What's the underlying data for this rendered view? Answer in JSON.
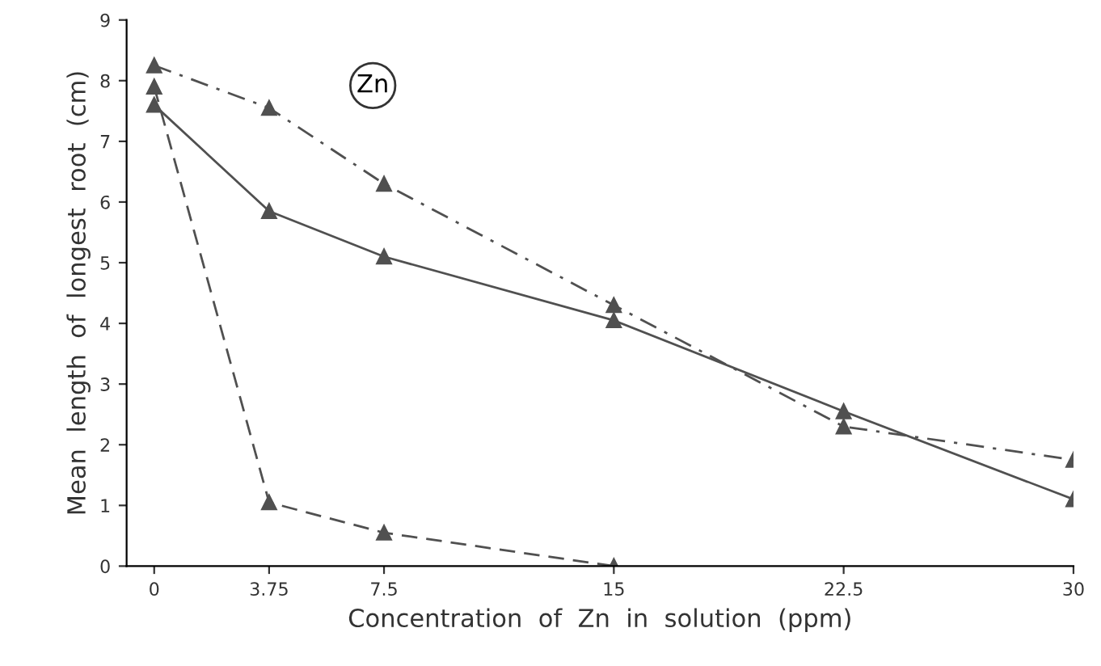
{
  "chart_data": {
    "type": "line",
    "xlabel": "Concentration  of  Zn  in  solution  (ppm)",
    "ylabel": "Mean  length  of  longest  root  (cm)",
    "annotations": [
      "Zn"
    ],
    "x": [
      0,
      3.75,
      7.5,
      15,
      22.5,
      30
    ],
    "xlim": [
      -0.9,
      30
    ],
    "xticks": [
      0,
      3.75,
      7.5,
      15,
      22.5,
      30
    ],
    "ylim": [
      0,
      9
    ],
    "yticks": [
      0,
      1,
      2,
      3,
      4,
      5,
      6,
      7,
      8,
      9
    ],
    "marker": "triangle",
    "grid": false,
    "legend": false,
    "series": [
      {
        "color": "#505050",
        "line_style": "dashdot",
        "values": [
          8.25,
          7.55,
          6.3,
          4.3,
          2.3,
          1.75
        ]
      },
      {
        "color": "#505050",
        "line_style": "solid",
        "values": [
          7.6,
          5.85,
          5.1,
          4.05,
          2.55,
          1.1
        ]
      },
      {
        "color": "#505050",
        "line_style": "dashed",
        "x": [
          0,
          3.75,
          7.5,
          15
        ],
        "values": [
          7.9,
          1.05,
          0.55,
          0
        ]
      }
    ]
  }
}
